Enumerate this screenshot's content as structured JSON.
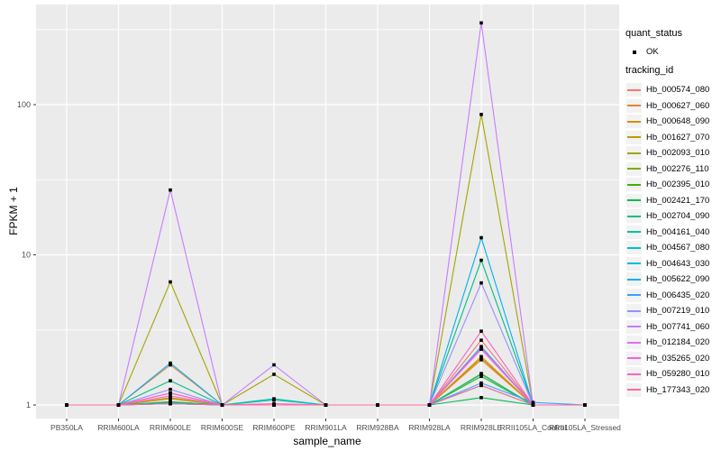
{
  "figure": {
    "background": "#FFFFFF",
    "panel_background": "#EBEBEB",
    "gridline_color": "#FFFFFF",
    "tick_color": "#333333",
    "tick_label_color": "#4D4D4D",
    "axis_title_color": "#000000",
    "legend_key_background": "#F2F2F2",
    "point_color": "#000000"
  },
  "chart_data": {
    "type": "line",
    "title": "",
    "xlabel": "sample_name",
    "ylabel": "FPKM + 1",
    "y_scale": "log10",
    "y_ticks": [
      "1",
      "10",
      "100"
    ],
    "y_tick_values": [
      1,
      10,
      100
    ],
    "y_minor_values": [
      3.162,
      31.62,
      316.2
    ],
    "ylim": [
      0.84,
      465
    ],
    "grid": true,
    "legend_position": "right",
    "point_shape": "filled-square",
    "categories": [
      "PB350LA",
      "RRIM600LA",
      "RRIM600LE",
      "RRIM600SE",
      "RRIM600PE",
      "RRIM901LA",
      "RRIM928BA",
      "RRIM928LA",
      "RRIM928LE",
      "RRII105LA_Control",
      "RRII105LA_Stressed"
    ],
    "legend": {
      "quant_status_title": "quant_status",
      "quant_status_items": [
        {
          "label": "OK",
          "symbol": "point"
        }
      ],
      "tracking_id_title": "tracking_id"
    },
    "series": [
      {
        "name": "Hb_000574_080",
        "color": "#F8766D",
        "values": [
          1,
          1,
          1.05,
          1,
          1,
          1,
          1,
          1,
          2.7,
          1,
          1
        ]
      },
      {
        "name": "Hb_000627_060",
        "color": "#EA8331",
        "values": [
          1,
          1,
          1.85,
          1,
          1,
          1,
          1,
          1,
          2.0,
          1,
          1
        ]
      },
      {
        "name": "Hb_000648_090",
        "color": "#D89000",
        "values": [
          1,
          1,
          1.12,
          1,
          1,
          1,
          1,
          1,
          2.1,
          1,
          1
        ]
      },
      {
        "name": "Hb_001627_070",
        "color": "#C09B00",
        "values": [
          1,
          1,
          1.1,
          1,
          1,
          1,
          1,
          1,
          2.05,
          1,
          1
        ]
      },
      {
        "name": "Hb_002093_010",
        "color": "#A3A500",
        "values": [
          1,
          1,
          6.6,
          1,
          1.6,
          1,
          1,
          1,
          86,
          1,
          1
        ]
      },
      {
        "name": "Hb_002276_110",
        "color": "#7CAE00",
        "values": [
          1,
          1,
          1.02,
          1,
          1,
          1,
          1,
          1,
          1.62,
          1,
          1
        ]
      },
      {
        "name": "Hb_002395_010",
        "color": "#39B600",
        "values": [
          1,
          1,
          1.03,
          1,
          1,
          1,
          1,
          1,
          1.55,
          1,
          1
        ]
      },
      {
        "name": "Hb_002421_170",
        "color": "#00BB4E",
        "values": [
          1,
          1,
          1.05,
          1,
          1,
          1,
          1,
          1,
          1.12,
          1,
          1
        ]
      },
      {
        "name": "Hb_002704_090",
        "color": "#00BF7D",
        "values": [
          1,
          1,
          1.45,
          1,
          1,
          1,
          1,
          1,
          9.2,
          1,
          1
        ]
      },
      {
        "name": "Hb_004161_040",
        "color": "#00C1A3",
        "values": [
          1,
          1,
          1.02,
          1,
          1.1,
          1,
          1,
          1,
          1.35,
          1,
          1
        ]
      },
      {
        "name": "Hb_004567_080",
        "color": "#00BFC4",
        "values": [
          1,
          1,
          1.03,
          1,
          1.08,
          1,
          1,
          1,
          1.6,
          1,
          1
        ]
      },
      {
        "name": "Hb_004643_030",
        "color": "#00BAE0",
        "values": [
          1,
          1,
          1.02,
          1,
          1,
          1,
          1,
          1,
          2.45,
          1,
          1
        ]
      },
      {
        "name": "Hb_005622_090",
        "color": "#00B0F6",
        "values": [
          1,
          1,
          1.9,
          1,
          1,
          1,
          1,
          1,
          13,
          1,
          1
        ]
      },
      {
        "name": "Hb_006435_020",
        "color": "#35A2FF",
        "values": [
          1,
          1,
          1.02,
          1,
          1,
          1,
          1,
          1,
          1.4,
          1.04,
          1
        ]
      },
      {
        "name": "Hb_007219_010",
        "color": "#9590FF",
        "values": [
          1,
          1,
          1.27,
          1,
          1,
          1,
          1,
          1,
          6.5,
          1,
          1
        ]
      },
      {
        "name": "Hb_007741_060",
        "color": "#C77CFF",
        "values": [
          1,
          1,
          27,
          1,
          1.85,
          1,
          1,
          1,
          350,
          1,
          1
        ]
      },
      {
        "name": "Hb_012184_020",
        "color": "#E76BF3",
        "values": [
          1,
          1,
          1.2,
          1,
          1,
          1,
          1,
          1,
          2.4,
          1,
          1
        ]
      },
      {
        "name": "Hb_035265_020",
        "color": "#FA62DB",
        "values": [
          1,
          1,
          1.15,
          1,
          1,
          1,
          1,
          1,
          2.35,
          1,
          1
        ]
      },
      {
        "name": "Hb_059280_010",
        "color": "#FF62BC",
        "values": [
          1,
          1,
          1.2,
          1,
          1,
          1,
          1,
          1,
          3.1,
          1,
          1
        ]
      },
      {
        "name": "Hb_177343_020",
        "color": "#FF6A98",
        "values": [
          1,
          1,
          1.02,
          1,
          1.02,
          1,
          1,
          1,
          1.35,
          1,
          1
        ]
      }
    ]
  }
}
